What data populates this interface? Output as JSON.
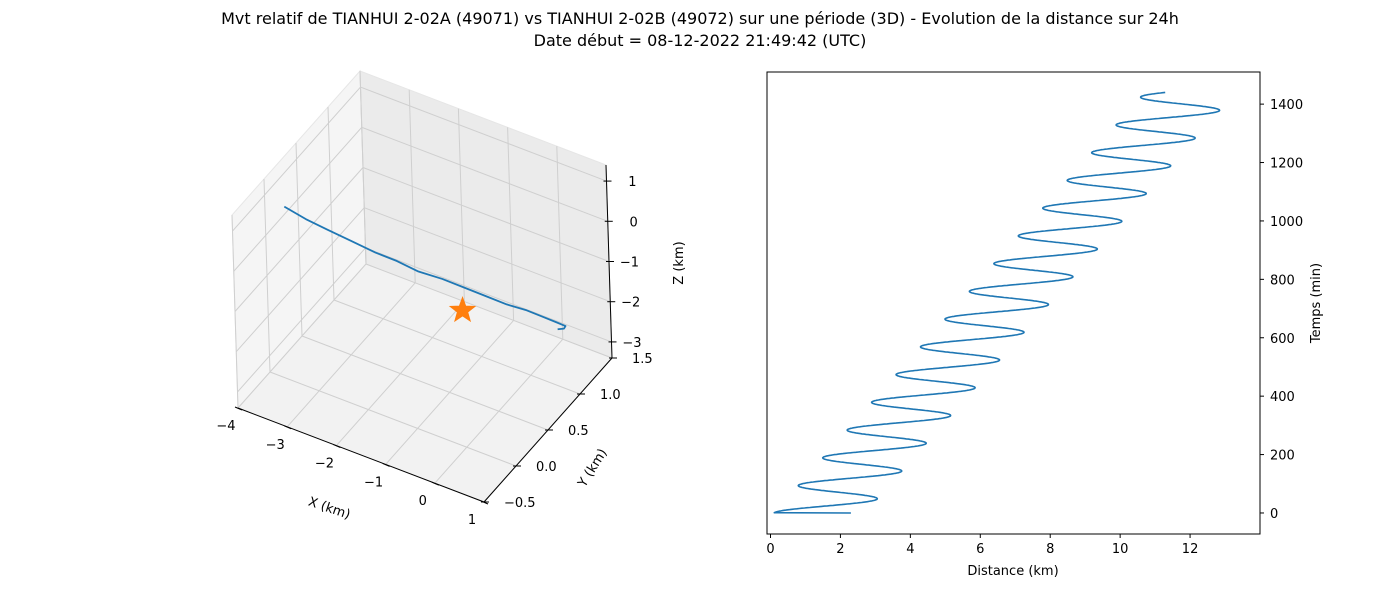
{
  "figure": {
    "title_line1": "Mvt relatif de TIANHUI 2-02A (49071) vs TIANHUI 2-02B (49072) sur une période (3D) - Evolution de la distance sur 24h",
    "title_line2": "Date début = 08-12-2022 21:49:42 (UTC)"
  },
  "colors": {
    "line": "#1f77b4",
    "marker": "#ff7f0e",
    "pane": "#f2f2f2",
    "grid": "#cfcfcf"
  },
  "chart_data": [
    {
      "type": "line",
      "projection": "3d",
      "xlabel": "X (km)",
      "ylabel": "Y (km)",
      "zlabel": "Z (km)",
      "xlim": [
        -4,
        1
      ],
      "ylim": [
        -0.5,
        1.5
      ],
      "zlim": [
        -3.4,
        1.4
      ],
      "x_ticks": [
        -4,
        -3,
        -2,
        -1,
        0,
        1
      ],
      "x_tick_labels": [
        "−4",
        "−3",
        "−2",
        "−1",
        "0",
        "1"
      ],
      "y_ticks": [
        -0.5,
        0.0,
        0.5,
        1.0,
        1.5
      ],
      "y_tick_labels": [
        "−0.5",
        "0.0",
        "0.5",
        "1.0",
        "1.5"
      ],
      "z_ticks": [
        -3,
        -2,
        -1,
        0,
        1
      ],
      "z_tick_labels": [
        "−3",
        "−2",
        "−1",
        "0",
        "1"
      ],
      "grid": true,
      "series": [
        {
          "x": [
            -3.6,
            -3.3,
            -3.0,
            -2.65,
            -2.3,
            -2.0,
            -1.7,
            -1.35,
            -1.0,
            -0.7,
            -0.45,
            -0.2,
            0.0,
            0.15,
            0.2,
            0.1,
            -0.1
          ],
          "y": [
            0.0,
            0.1,
            0.2,
            0.3,
            0.4,
            0.5,
            0.6,
            0.7,
            0.8,
            0.9,
            1.0,
            1.1,
            1.2,
            1.3,
            1.4,
            1.45,
            1.5
          ],
          "z": [
            0.9,
            0.55,
            0.25,
            -0.05,
            -0.35,
            -0.6,
            -0.9,
            -1.1,
            -1.35,
            -1.6,
            -1.85,
            -2.05,
            -2.3,
            -2.55,
            -2.8,
            -3.0,
            -3.2
          ]
        }
      ],
      "marker": {
        "symbol": "star",
        "x": 0,
        "y": 0,
        "z": 0
      }
    },
    {
      "type": "line",
      "xlabel": "Distance (km)",
      "ylabel": "Temps (min)",
      "xlim": [
        -0.1,
        14.0
      ],
      "ylim": [
        -72,
        1510
      ],
      "x_ticks": [
        0,
        2,
        4,
        6,
        8,
        10,
        12
      ],
      "y_ticks": [
        0,
        200,
        400,
        600,
        800,
        1000,
        1200,
        1400
      ],
      "y_axis_side": "right",
      "grid": false,
      "series": [
        {
          "model": {
            "t_max_min": 1440,
            "period_min": 95,
            "center_start_km": 1.4,
            "center_end_km": 12.0,
            "amplitude_km": 1.3,
            "start_distance_km": 2.3
          }
        }
      ]
    }
  ]
}
